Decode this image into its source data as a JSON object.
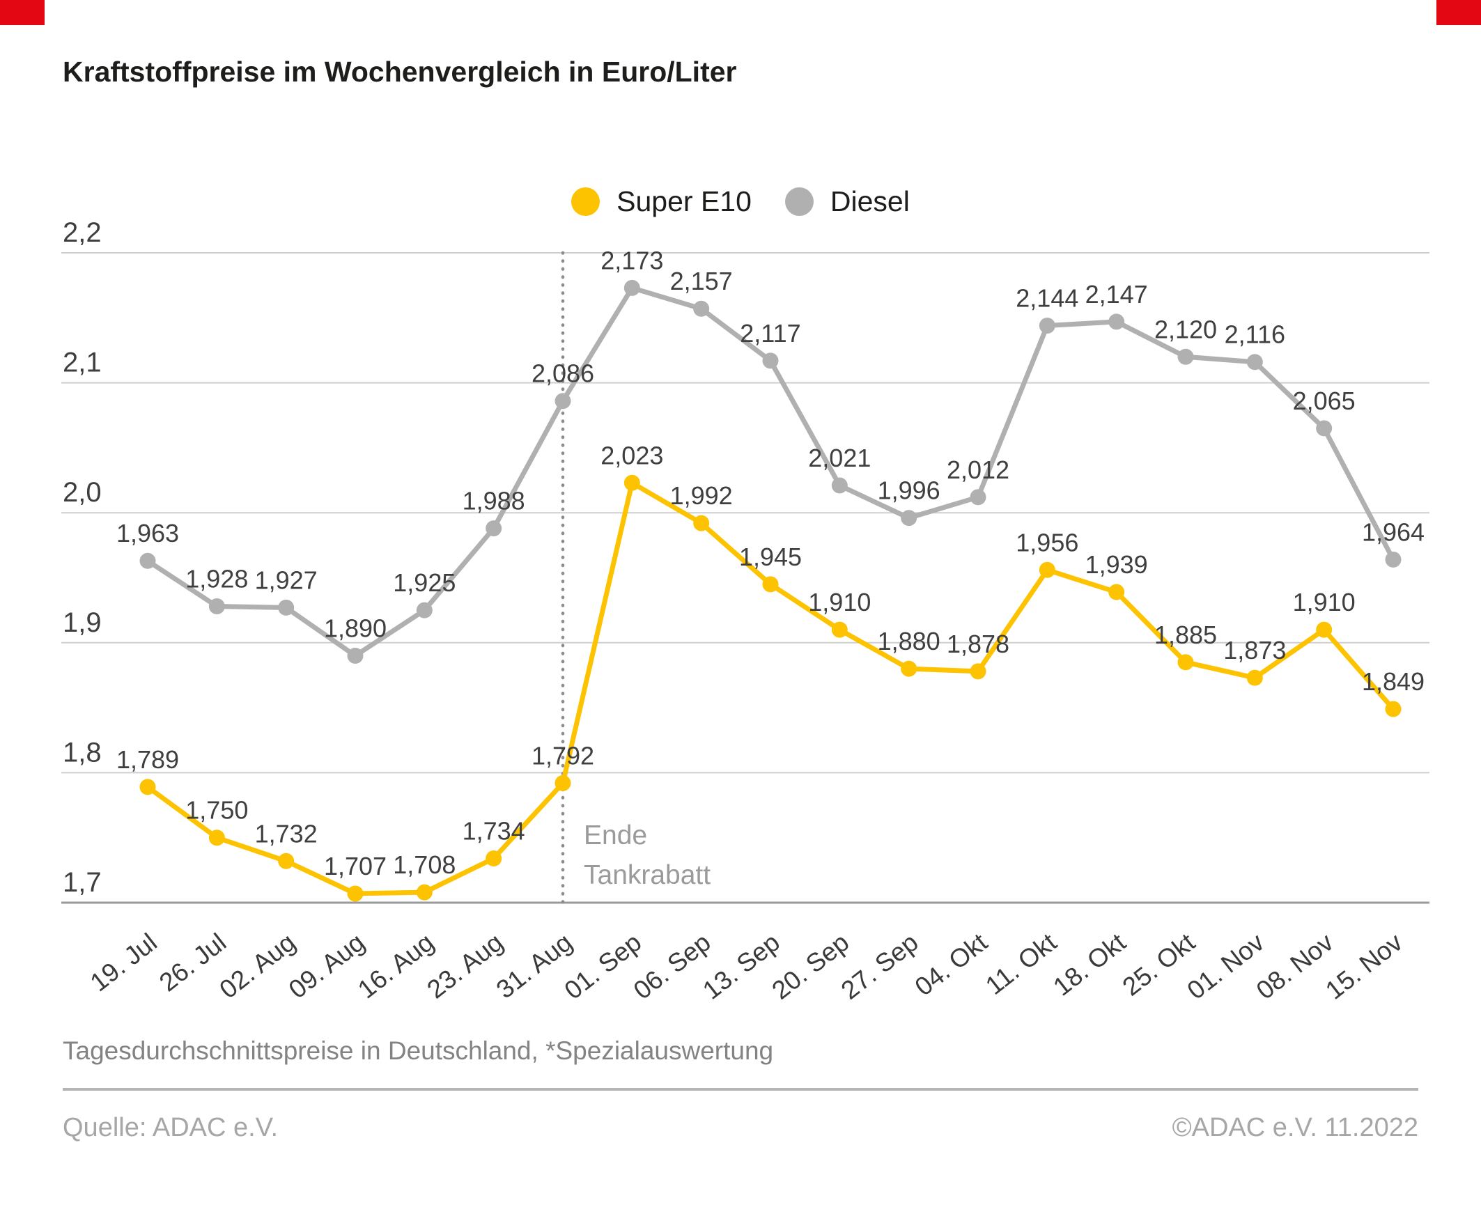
{
  "title": "Kraftstoffpreise im Wochenvergleich in Euro/Liter",
  "chart_data": {
    "type": "line",
    "categories": [
      "19. Jul",
      "26. Jul",
      "02. Aug",
      "09. Aug",
      "16. Aug",
      "23. Aug",
      "31. Aug",
      "01. Sep",
      "06. Sep",
      "13. Sep",
      "20. Sep",
      "27. Sep",
      "04. Okt",
      "11. Okt",
      "18. Okt",
      "25. Okt",
      "01. Nov",
      "08. Nov",
      "15. Nov"
    ],
    "series": [
      {
        "name": "Super E10",
        "color": "#fdc300",
        "values": [
          1.789,
          1.75,
          1.732,
          1.707,
          1.708,
          1.734,
          1.792,
          2.023,
          1.992,
          1.945,
          1.91,
          1.88,
          1.878,
          1.956,
          1.939,
          1.885,
          1.873,
          1.91,
          1.849
        ]
      },
      {
        "name": "Diesel",
        "color": "#b0b0b0",
        "values": [
          1.963,
          1.928,
          1.927,
          1.89,
          1.925,
          1.988,
          2.086,
          2.173,
          2.157,
          2.117,
          2.021,
          1.996,
          2.012,
          2.144,
          2.147,
          2.12,
          2.116,
          2.065,
          1.964
        ]
      }
    ],
    "ylim": [
      1.7,
      2.2
    ],
    "yticks": [
      "1,7",
      "1,8",
      "1,9",
      "2,0",
      "2,1",
      "2,2"
    ],
    "grid": true,
    "legend_position": "top-center",
    "value_decimal_separator": ",",
    "annotation": {
      "lines": [
        "Ende",
        "Tankrabatt"
      ],
      "at_category": "31. Aug"
    }
  },
  "footnote": "Tagesdurchschnittspreise in Deutschland, *Spezialauswertung",
  "source": "Quelle: ADAC e.V.",
  "copyright": "©ADAC e.V.  11.2022",
  "colors": {
    "super_e10": "#fdc300",
    "diesel": "#b0b0b0",
    "accent_red": "#e30613",
    "grid": "#cfcfcf",
    "axis": "#9a9a9a",
    "label_text": "#3f3f3f",
    "muted_text": "#9a9a9a"
  }
}
